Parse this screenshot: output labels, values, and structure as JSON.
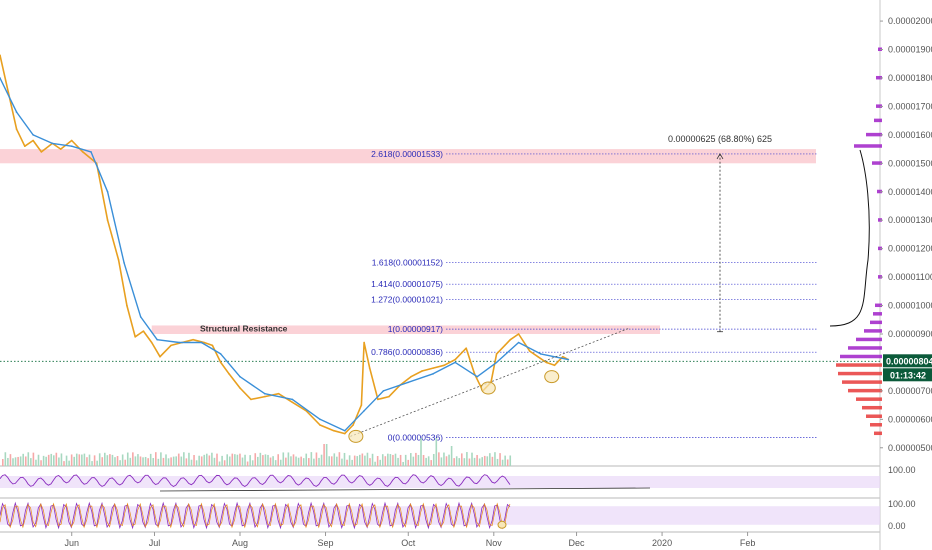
{
  "chart_data": {
    "type": "line",
    "xlim": [
      "2019-05-06",
      "2020-03-20"
    ],
    "ylim": [
      4.5e-06,
      2.06e-05
    ],
    "x_ticks": [
      {
        "date": "2019-06-01",
        "label": "Jun"
      },
      {
        "date": "2019-07-01",
        "label": "Jul"
      },
      {
        "date": "2019-08-01",
        "label": "Aug"
      },
      {
        "date": "2019-09-01",
        "label": "Sep"
      },
      {
        "date": "2019-10-01",
        "label": "Oct"
      },
      {
        "date": "2019-11-01",
        "label": "Nov"
      },
      {
        "date": "2019-12-01",
        "label": "Dec"
      },
      {
        "date": "2020-01-01",
        "label": "2020"
      },
      {
        "date": "2020-02-01",
        "label": "Feb"
      }
    ],
    "y_ticks": [
      {
        "value": 5e-06,
        "label": "0.00000500"
      },
      {
        "value": 6e-06,
        "label": "0.00000600"
      },
      {
        "value": 7e-06,
        "label": "0.00000700"
      },
      {
        "value": 9e-06,
        "label": "0.00000900"
      },
      {
        "value": 1e-05,
        "label": "0.00001000"
      },
      {
        "value": 1.1e-05,
        "label": "0.00001100"
      },
      {
        "value": 1.2e-05,
        "label": "0.00001200"
      },
      {
        "value": 1.3e-05,
        "label": "0.00001300"
      },
      {
        "value": 1.4e-05,
        "label": "0.00001400"
      },
      {
        "value": 1.5e-05,
        "label": "0.00001500"
      },
      {
        "value": 1.6e-05,
        "label": "0.00001600"
      },
      {
        "value": 1.7e-05,
        "label": "0.00001700"
      },
      {
        "value": 1.8e-05,
        "label": "0.00001800"
      },
      {
        "value": 1.9e-05,
        "label": "0.00001900"
      },
      {
        "value": 2e-05,
        "label": "0.00002000"
      }
    ],
    "series": [
      {
        "color": "#e8a020",
        "x": [
          "2019-05-06",
          "2019-05-09",
          "2019-05-12",
          "2019-05-15",
          "2019-05-18",
          "2019-05-21",
          "2019-05-25",
          "2019-05-28",
          "2019-06-01",
          "2019-06-05",
          "2019-06-10",
          "2019-06-14",
          "2019-06-18",
          "2019-06-21",
          "2019-06-24",
          "2019-06-27",
          "2019-06-30",
          "2019-07-03",
          "2019-07-07",
          "2019-07-11",
          "2019-07-15",
          "2019-07-19",
          "2019-07-22",
          "2019-07-25",
          "2019-07-28",
          "2019-08-01",
          "2019-08-05",
          "2019-08-10",
          "2019-08-15",
          "2019-08-20",
          "2019-08-25",
          "2019-08-30",
          "2019-09-04",
          "2019-09-08",
          "2019-09-11",
          "2019-09-14",
          "2019-09-15",
          "2019-09-17",
          "2019-09-20",
          "2019-09-24",
          "2019-09-28",
          "2019-10-02",
          "2019-10-06",
          "2019-10-10",
          "2019-10-14",
          "2019-10-18",
          "2019-10-22",
          "2019-10-25",
          "2019-10-28",
          "2019-10-31",
          "2019-11-02",
          "2019-11-05",
          "2019-11-07",
          "2019-11-10",
          "2019-11-14",
          "2019-11-17",
          "2019-11-20",
          "2019-11-23",
          "2019-11-26",
          "2019-11-28"
        ],
        "y": [
          1.88e-05,
          1.75e-05,
          1.62e-05,
          1.56e-05,
          1.58e-05,
          1.54e-05,
          1.57e-05,
          1.55e-05,
          1.58e-05,
          1.54e-05,
          1.5e-05,
          1.3e-05,
          1.16e-05,
          1e-05,
          8.9e-06,
          9.1e-06,
          8.7e-06,
          8.2e-06,
          8.6e-06,
          8.7e-06,
          8.8e-06,
          8.7e-06,
          8.6e-06,
          8e-06,
          7.6e-06,
          7.1e-06,
          6.7e-06,
          6.8e-06,
          6.9e-06,
          6.6e-06,
          6.3e-06,
          5.8e-06,
          5.6e-06,
          5.5e-06,
          5.8e-06,
          6.5e-06,
          8.7e-06,
          7.8e-06,
          6.7e-06,
          6.8e-06,
          7.2e-06,
          7.5e-06,
          7.7e-06,
          7.8e-06,
          7.9e-06,
          8.1e-06,
          8.5e-06,
          7.6e-06,
          7e-06,
          7.3e-06,
          8.3e-06,
          8.6e-06,
          8.8e-06,
          9e-06,
          8.4e-06,
          8.2e-06,
          8e-06,
          7.9e-06,
          8.2e-06,
          8.1e-06
        ]
      },
      {
        "color": "#3a8fd8",
        "x": [
          "2019-05-06",
          "2019-05-12",
          "2019-05-18",
          "2019-05-25",
          "2019-06-01",
          "2019-06-08",
          "2019-06-14",
          "2019-06-20",
          "2019-06-26",
          "2019-07-02",
          "2019-07-10",
          "2019-07-18",
          "2019-07-25",
          "2019-08-01",
          "2019-08-10",
          "2019-08-20",
          "2019-08-30",
          "2019-09-08",
          "2019-09-15",
          "2019-09-22",
          "2019-10-01",
          "2019-10-10",
          "2019-10-18",
          "2019-10-26",
          "2019-11-02",
          "2019-11-10",
          "2019-11-18",
          "2019-11-28"
        ],
        "y": [
          1.8e-05,
          1.68e-05,
          1.6e-05,
          1.57e-05,
          1.56e-05,
          1.54e-05,
          1.4e-05,
          1.15e-05,
          9.6e-06,
          8.8e-06,
          8.7e-06,
          8.7e-06,
          8.3e-06,
          7.5e-06,
          6.9e-06,
          6.7e-06,
          6e-06,
          5.6e-06,
          6.3e-06,
          7e-06,
          7.3e-06,
          7.6e-06,
          8e-06,
          7.5e-06,
          8e-06,
          8.7e-06,
          8.3e-06,
          8.1e-06
        ]
      }
    ],
    "fib_levels": [
      {
        "value": 1.533e-05,
        "label": "2.618(0.00001533)"
      },
      {
        "value": 1.152e-05,
        "label": "1.618(0.00001152)"
      },
      {
        "value": 1.075e-05,
        "label": "1.414(0.00001075)"
      },
      {
        "value": 1.021e-05,
        "label": "1.272(0.00001021)"
      },
      {
        "value": 9.17e-06,
        "label": "1(0.00000917)"
      },
      {
        "value": 8.36e-06,
        "label": "0.786(0.00000836)"
      },
      {
        "value": 5.36e-06,
        "label": "0(0.00000536)"
      }
    ],
    "zones": [
      {
        "y_low": 1.5e-05,
        "y_high": 1.55e-05
      },
      {
        "y_low": 9e-06,
        "y_high": 9.3e-06,
        "label": "Structural Resistance"
      }
    ],
    "trendline": {
      "x": [
        "2019-09-10",
        "2019-12-20"
      ],
      "y": [
        5.4e-06,
        9.2e-06
      ]
    },
    "measure": {
      "date": "2020-01-22",
      "y_from": 9.08e-06,
      "y_to": 1.533e-05,
      "label": "0.00000625 (68.80%) 625"
    },
    "circles": [
      {
        "date": "2019-09-12",
        "value": 5.4e-06
      },
      {
        "date": "2019-10-30",
        "value": 7.1e-06
      },
      {
        "date": "2019-11-22",
        "value": 7.5e-06
      }
    ],
    "price_tag": {
      "value": 8.04e-06,
      "label": "0.00000804",
      "countdown": "01:13:42"
    },
    "volume_profile": [
      {
        "value": 5.5e-06,
        "size": 8
      },
      {
        "value": 5.8e-06,
        "size": 12
      },
      {
        "value": 6.1e-06,
        "size": 16
      },
      {
        "value": 6.4e-06,
        "size": 20
      },
      {
        "value": 6.7e-06,
        "size": 26
      },
      {
        "value": 7e-06,
        "size": 34
      },
      {
        "value": 7.3e-06,
        "size": 40
      },
      {
        "value": 7.6e-06,
        "size": 44
      },
      {
        "value": 7.9e-06,
        "size": 46
      },
      {
        "value": 8.2e-06,
        "size": 42
      },
      {
        "value": 8.5e-06,
        "size": 34
      },
      {
        "value": 8.8e-06,
        "size": 26
      },
      {
        "value": 9.1e-06,
        "size": 18
      },
      {
        "value": 9.4e-06,
        "size": 12
      },
      {
        "value": 9.7e-06,
        "size": 9
      },
      {
        "value": 1e-05,
        "size": 7
      },
      {
        "value": 1.1e-05,
        "size": 4
      },
      {
        "value": 1.2e-05,
        "size": 4
      },
      {
        "value": 1.3e-05,
        "size": 4
      },
      {
        "value": 1.4e-05,
        "size": 5
      },
      {
        "value": 1.5e-05,
        "size": 10
      },
      {
        "value": 1.56e-05,
        "size": 28
      },
      {
        "value": 1.6e-05,
        "size": 16
      },
      {
        "value": 1.65e-05,
        "size": 8
      },
      {
        "value": 1.7e-05,
        "size": 6
      },
      {
        "value": 1.8e-05,
        "size": 6
      },
      {
        "value": 1.9e-05,
        "size": 4
      }
    ],
    "rsi_panel": {
      "labels": [
        "100.00"
      ],
      "band": [
        30,
        70
      ]
    },
    "stoch_panel": {
      "labels": [
        "100.00",
        "0.00"
      ],
      "band": [
        20,
        80
      ]
    }
  }
}
